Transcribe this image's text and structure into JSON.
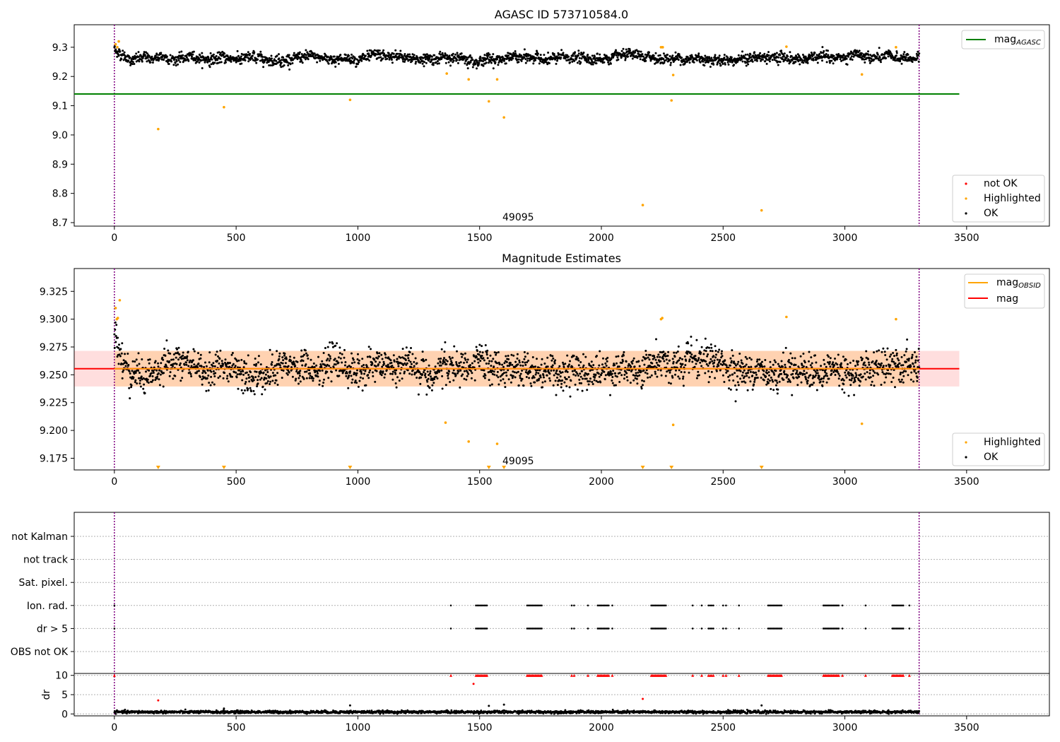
{
  "figure": {
    "x_ticks": [
      "0",
      "500",
      "1000",
      "1500",
      "2000",
      "2500",
      "3000",
      "3500"
    ]
  },
  "chart_data": [
    {
      "type": "scatter",
      "title": "AGASC ID 573710584.0",
      "xlim": [
        -165,
        3840
      ],
      "ylim": [
        8.688,
        9.377
      ],
      "y_ticks": [
        8.7,
        8.8,
        8.9,
        9.0,
        9.1,
        9.2,
        9.3
      ],
      "y_tick_labels": [
        "8.7",
        "8.8",
        "8.9",
        "9.0",
        "9.1",
        "9.2",
        "9.3"
      ],
      "obs_boundaries": [
        0,
        3305
      ],
      "obsid_label": "49095",
      "hline": {
        "name": "mag",
        "subscript": "AGASC",
        "y": 9.14,
        "x_range": [
          -165,
          3470
        ],
        "color": "#008000"
      },
      "ok_band": {
        "center": 9.262,
        "noise": 0.016
      },
      "highlighted_points": [
        [
          5,
          9.31
        ],
        [
          12,
          9.3
        ],
        [
          18,
          9.32
        ],
        [
          180,
          9.02
        ],
        [
          450,
          9.095
        ],
        [
          968,
          9.12
        ],
        [
          1365,
          9.21
        ],
        [
          1455,
          9.19
        ],
        [
          1538,
          9.115
        ],
        [
          1572,
          9.19
        ],
        [
          1600,
          9.06
        ],
        [
          2170,
          8.76
        ],
        [
          2245,
          9.3
        ],
        [
          2252,
          9.3
        ],
        [
          2288,
          9.118
        ],
        [
          2295,
          9.205
        ],
        [
          2658,
          8.742
        ],
        [
          2760,
          9.302
        ],
        [
          3070,
          9.207
        ],
        [
          3210,
          9.3
        ]
      ],
      "legends": [
        {
          "position": "upper-right",
          "entries": [
            {
              "label": "mag",
              "subscript": "AGASC",
              "marker": "line",
              "color": "#008000"
            }
          ]
        },
        {
          "position": "lower-right",
          "entries": [
            {
              "label": "not OK",
              "marker": "dot",
              "color": "#ff0000"
            },
            {
              "label": "Highlighted",
              "marker": "dot",
              "color": "#ffa500"
            },
            {
              "label": "OK",
              "marker": "dot",
              "color": "#000000"
            }
          ]
        }
      ]
    },
    {
      "type": "scatter",
      "title": "Magnitude Estimates",
      "xlim": [
        -165,
        3840
      ],
      "ylim": [
        9.1645,
        9.3455
      ],
      "y_ticks": [
        9.175,
        9.2,
        9.225,
        9.25,
        9.275,
        9.3,
        9.325
      ],
      "y_tick_labels": [
        "9.175",
        "9.200",
        "9.225",
        "9.250",
        "9.275",
        "9.300",
        "9.325"
      ],
      "obs_boundaries": [
        0,
        3305
      ],
      "obsid_label": "49095",
      "band": {
        "y_low": 9.2395,
        "y_high": 9.2715,
        "x_range": [
          -165,
          3470
        ],
        "color": "#ff000022"
      },
      "band_obsid": {
        "y_low": 9.2395,
        "y_high": 9.2715,
        "x_range": [
          0,
          3305
        ],
        "color": "#ffa50033"
      },
      "hline_mag": {
        "name": "mag",
        "y": 9.2555,
        "x_range": [
          -165,
          3470
        ],
        "color": "#ff0000"
      },
      "hline_obsid": {
        "name": "mag",
        "subscript": "OBSID",
        "y": 9.2555,
        "x_range": [
          0,
          3305
        ],
        "color": "#ffa500"
      },
      "ok_band": {
        "center": 9.2555,
        "noise": 0.013
      },
      "highlighted_points": [
        [
          5,
          9.31
        ],
        [
          10,
          9.3
        ],
        [
          14,
          9.301
        ],
        [
          22,
          9.317
        ],
        [
          1360,
          9.207
        ],
        [
          1455,
          9.19
        ],
        [
          1572,
          9.188
        ],
        [
          2245,
          9.3
        ],
        [
          2250,
          9.301
        ],
        [
          2295,
          9.205
        ],
        [
          2760,
          9.302
        ],
        [
          3070,
          9.206
        ],
        [
          3210,
          9.3
        ]
      ],
      "lower_limit_markers": [
        180,
        450,
        968,
        1538,
        1600,
        2170,
        2288,
        2658
      ],
      "legends": [
        {
          "position": "upper-right",
          "entries": [
            {
              "label": "mag",
              "subscript": "OBSID",
              "marker": "line",
              "color": "#ffa500"
            },
            {
              "label": "mag",
              "marker": "line",
              "color": "#ff0000"
            }
          ]
        },
        {
          "position": "lower-right",
          "entries": [
            {
              "label": "Highlighted",
              "marker": "dot",
              "color": "#ffa500"
            },
            {
              "label": "OK",
              "marker": "dot",
              "color": "#000000"
            }
          ]
        }
      ]
    },
    {
      "type": "scatter",
      "title": "",
      "xlim": [
        -165,
        3840
      ],
      "flag_rows": [
        "not Kalman",
        "not track",
        "Sat. pixel.",
        "Ion. rad.",
        "dr > 5",
        "OBS not OK"
      ],
      "obs_boundaries": [
        0,
        3305
      ],
      "flag_clusters": [
        [
          0,
          0
        ],
        [
          1382,
          1382
        ],
        [
          1485,
          1530
        ],
        [
          1695,
          1755
        ],
        [
          1878,
          1888
        ],
        [
          1945,
          1945
        ],
        [
          1985,
          2030
        ],
        [
          2045,
          2045
        ],
        [
          2205,
          2265
        ],
        [
          2375,
          2375
        ],
        [
          2412,
          2412
        ],
        [
          2440,
          2460
        ],
        [
          2500,
          2512
        ],
        [
          2565,
          2565
        ],
        [
          2685,
          2740
        ],
        [
          2912,
          2975
        ],
        [
          2990,
          2990
        ],
        [
          3085,
          3085
        ],
        [
          3195,
          3240
        ],
        [
          3265,
          3265
        ]
      ],
      "flagged_rows": [
        "Ion. rad.",
        "dr > 5"
      ],
      "dr_panel": {
        "ylabel": "dr",
        "y_ticks": [
          0,
          5,
          10
        ],
        "y_tick_labels": [
          "0",
          "5",
          "10"
        ],
        "ylim": [
          -0.5,
          10.5
        ],
        "baseline": {
          "center": 0.5,
          "noise": 0.3
        },
        "outlier_points": [
          [
            180,
            3.5
          ],
          [
            450,
            1.4
          ],
          [
            968,
            2.2
          ],
          [
            1475,
            7.8
          ],
          [
            1538,
            2.1
          ],
          [
            1600,
            2.4
          ],
          [
            2170,
            3.9
          ],
          [
            2658,
            2.2
          ]
        ],
        "clipped_marker_value": 10,
        "clipped_color": "#ff0000"
      }
    }
  ]
}
